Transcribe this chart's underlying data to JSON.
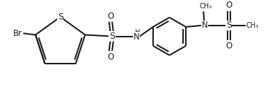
{
  "bg_color": "#ffffff",
  "line_color": "#1a1a1a",
  "line_width": 1.5,
  "font_size": 8.5,
  "figsize": [
    3.98,
    1.36
  ],
  "dpi": 100,
  "xlim": [
    0.0,
    8.2
  ],
  "ylim": [
    0.5,
    3.5
  ]
}
